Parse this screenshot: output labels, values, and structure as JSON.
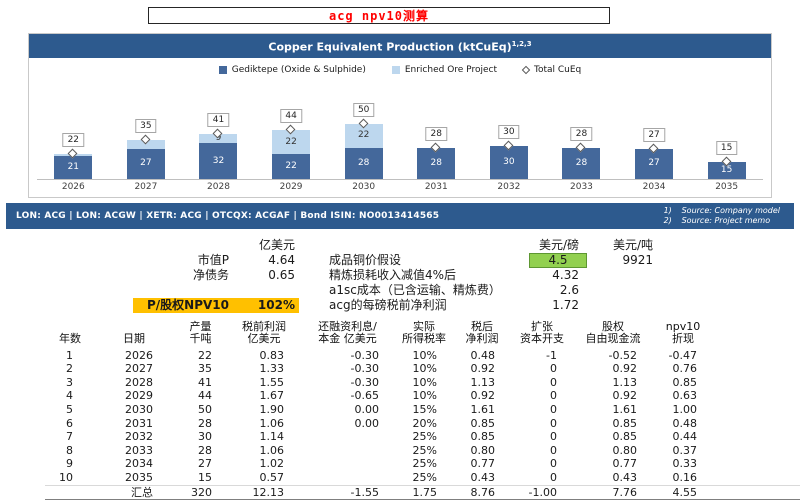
{
  "page": {
    "title": "acg npv10测算"
  },
  "colors": {
    "navy": "#2d5a8e",
    "bar_dark": "#44689b",
    "bar_light": "#bdd7ee",
    "highlight_yellow": "#ffc000",
    "highlight_green": "#92d050",
    "title_red": "#ff0000"
  },
  "chart": {
    "title": "Copper Equivalent Production (ktCuEq)",
    "title_sup": "1,2,3",
    "legend": [
      {
        "label": "Gediktepe (Oxide & Sulphide)",
        "shape": "square",
        "color": "#44689b"
      },
      {
        "label": "Enriched Ore Project",
        "shape": "square",
        "color": "#bdd7ee"
      },
      {
        "label": "Total CuEq",
        "shape": "diamond",
        "color": "#ffffff"
      }
    ]
  },
  "chart_data": {
    "type": "bar",
    "stacked": true,
    "title": "Copper Equivalent Production (ktCuEq)",
    "categories": [
      "2026",
      "2027",
      "2028",
      "2029",
      "2030",
      "2031",
      "2032",
      "2033",
      "2034",
      "2035"
    ],
    "series": [
      {
        "name": "Gediktepe (Oxide & Sulphide)",
        "values": [
          21,
          27,
          32,
          22,
          28,
          28,
          30,
          28,
          27,
          15
        ]
      },
      {
        "name": "Enriched Ore Project",
        "values": [
          1,
          8,
          9,
          22,
          22,
          0,
          0,
          0,
          0,
          0
        ]
      }
    ],
    "totals": [
      22,
      35,
      41,
      44,
      50,
      28,
      30,
      28,
      27,
      15
    ],
    "xlabel": "",
    "ylabel": "",
    "ylim": [
      0,
      55
    ],
    "grid": false,
    "legend_position": "top"
  },
  "ticker": {
    "text": "LON:  ACG   |   LON: ACGW   |   XETR: ACG   |   OTCQX: ACGAF   |   Bond ISIN: NO0013414565",
    "sources": [
      {
        "num": "1)",
        "text": "Source: Company model"
      },
      {
        "num": "2)",
        "text": "Source: Project memo"
      }
    ]
  },
  "summary_left": {
    "unit_header": "亿美元",
    "rows": [
      {
        "label": "市值P",
        "value": "4.64",
        "highlight": false
      },
      {
        "label": "净债务",
        "value": "0.65",
        "highlight": false
      },
      {
        "label": "",
        "value": "",
        "highlight": false
      },
      {
        "label": "P/股权NPV10",
        "value": "102%",
        "highlight": true
      }
    ]
  },
  "summary_right": {
    "headers": [
      "美元/磅",
      "美元/吨"
    ],
    "rows": [
      {
        "label": "成品铜价假设",
        "v1": "4.5",
        "v2": "9921",
        "green": true
      },
      {
        "label": "精炼损耗收入减值4%后",
        "v1": "4.32",
        "v2": "",
        "green": false
      },
      {
        "label": "a1sc成本（已含运输、精炼费）",
        "v1": "2.6",
        "v2": "",
        "green": false
      },
      {
        "label": "acg的每磅税前净利润",
        "v1": "1.72",
        "v2": "",
        "green": false
      }
    ]
  },
  "table": {
    "headers": [
      "年数",
      "日期",
      "产量\n千吨",
      "税前利润\n亿美元",
      "还融资利息/\n本金  亿美元",
      "实际\n所得税率",
      "税后\n净利润",
      "扩张\n资本开支",
      "股权\n自由现金流",
      "npv10\n折现"
    ],
    "rows": [
      [
        "1",
        "2026",
        "22",
        "0.83",
        "-0.30",
        "10%",
        "0.48",
        "-1",
        "-0.52",
        "-0.47"
      ],
      [
        "2",
        "2027",
        "35",
        "1.33",
        "-0.30",
        "10%",
        "0.92",
        "0",
        "0.92",
        "0.76"
      ],
      [
        "3",
        "2028",
        "41",
        "1.55",
        "-0.30",
        "10%",
        "1.13",
        "0",
        "1.13",
        "0.85"
      ],
      [
        "4",
        "2029",
        "44",
        "1.67",
        "-0.65",
        "10%",
        "0.92",
        "0",
        "0.92",
        "0.63"
      ],
      [
        "5",
        "2030",
        "50",
        "1.90",
        "0.00",
        "15%",
        "1.61",
        "0",
        "1.61",
        "1.00"
      ],
      [
        "6",
        "2031",
        "28",
        "1.06",
        "0.00",
        "20%",
        "0.85",
        "0",
        "0.85",
        "0.48"
      ],
      [
        "7",
        "2032",
        "30",
        "1.14",
        "",
        "25%",
        "0.85",
        "0",
        "0.85",
        "0.44"
      ],
      [
        "8",
        "2033",
        "28",
        "1.06",
        "",
        "25%",
        "0.80",
        "0",
        "0.80",
        "0.37"
      ],
      [
        "9",
        "2034",
        "27",
        "1.02",
        "",
        "25%",
        "0.77",
        "0",
        "0.77",
        "0.33"
      ],
      [
        "10",
        "2035",
        "15",
        "0.57",
        "",
        "25%",
        "0.43",
        "0",
        "0.43",
        "0.16"
      ]
    ],
    "total_row": [
      "",
      "汇总",
      "320",
      "12.13",
      "-1.55",
      "1.75",
      "8.76",
      "-1.00",
      "7.76",
      "4.55"
    ]
  }
}
